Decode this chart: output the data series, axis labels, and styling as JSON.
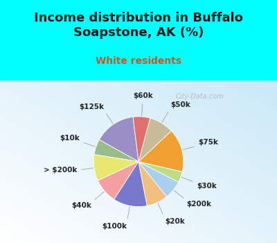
{
  "title": "Income distribution in Buffalo\nSoapstone, AK (%)",
  "subtitle": "White residents",
  "title_color": "#1a1a1a",
  "subtitle_color": "#cc5522",
  "background_cyan": "#00ffff",
  "watermark": "City-Data.com",
  "slices": [
    {
      "label": "$125k",
      "value": 13.5,
      "color": "#9b8ec4",
      "label_side": "right"
    },
    {
      "label": "$10k",
      "value": 5.0,
      "color": "#99bb88",
      "label_side": "right"
    },
    {
      "label": "> $200k",
      "value": 8.5,
      "color": "#e8e870",
      "label_side": "right"
    },
    {
      "label": "$40k",
      "value": 8.0,
      "color": "#f4a0a0",
      "label_side": "right"
    },
    {
      "label": "$100k",
      "value": 11.0,
      "color": "#7878cc",
      "label_side": "right"
    },
    {
      "label": "$20k",
      "value": 7.0,
      "color": "#f0c080",
      "label_side": "bottom"
    },
    {
      "label": "$200k",
      "value": 6.0,
      "color": "#aacfef",
      "label_side": "left"
    },
    {
      "label": "$30k",
      "value": 3.5,
      "color": "#bbdd88",
      "label_side": "left"
    },
    {
      "label": "$75k",
      "value": 14.0,
      "color": "#f0a030",
      "label_side": "left"
    },
    {
      "label": "$50k",
      "value": 8.0,
      "color": "#c8bb99",
      "label_side": "left"
    },
    {
      "label": "$60k",
      "value": 5.5,
      "color": "#e07070",
      "label_side": "top"
    }
  ],
  "label_fontsize": 7.5,
  "title_fontsize": 13,
  "subtitle_fontsize": 10,
  "startangle": 97
}
